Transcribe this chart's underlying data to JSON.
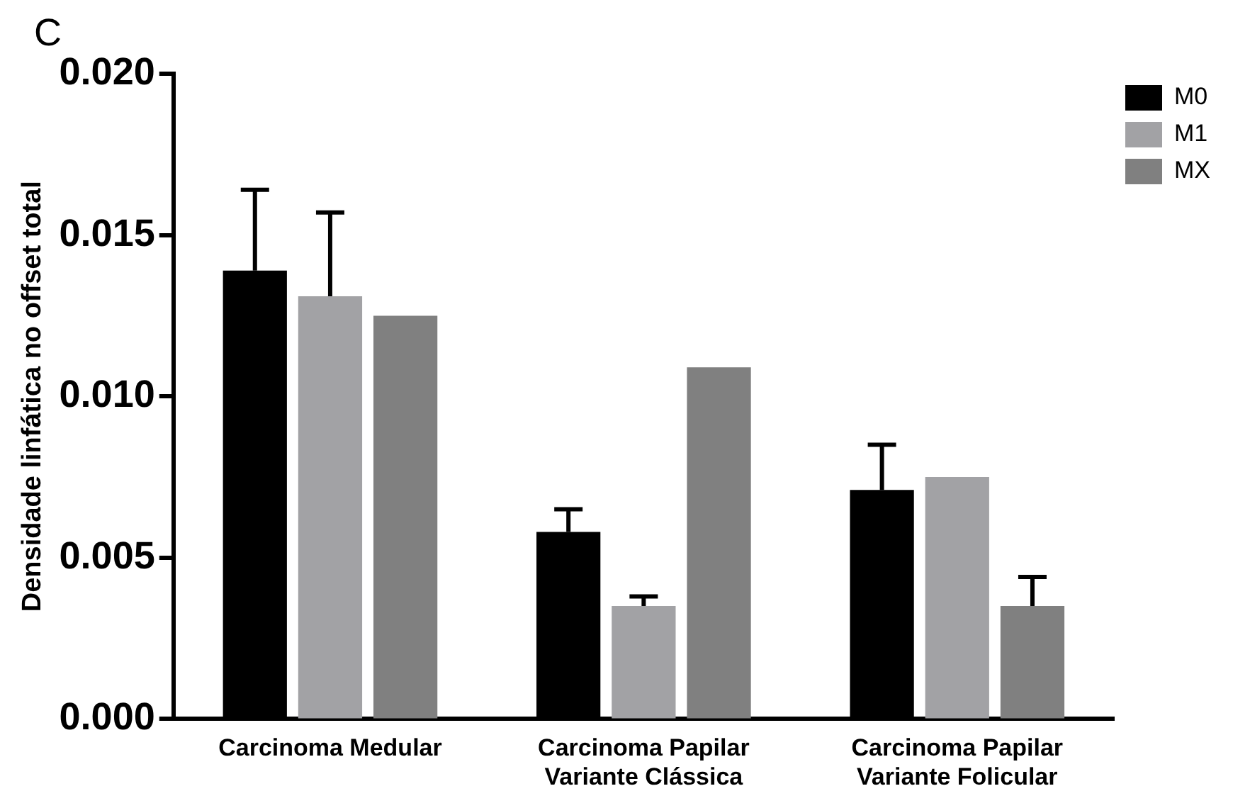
{
  "chart_data": {
    "type": "bar",
    "annotations": [
      "C"
    ],
    "ylabel": "Densidade linfática no offset total",
    "categories": [
      "Carcinoma Medular",
      "Carcinoma Papilar Variante Clássica",
      "Carcinoma Papilar Variante Folicular"
    ],
    "series": [
      {
        "name": "M0",
        "color": "#000000",
        "values": [
          0.0139,
          0.0058,
          0.0071
        ],
        "errors": [
          [
            0.0139,
            0.0164
          ],
          [
            0.0058,
            0.0065
          ],
          [
            0.0071,
            0.0085
          ]
        ]
      },
      {
        "name": "M1",
        "color": "#a2a2a5",
        "values": [
          0.0131,
          0.0035,
          0.0075
        ],
        "errors": [
          [
            0.0131,
            0.0157
          ],
          [
            0.0035,
            0.0038
          ],
          null
        ]
      },
      {
        "name": "MX",
        "color": "#808080",
        "values": [
          0.0125,
          0.0109,
          0.0035
        ],
        "errors": [
          null,
          null,
          [
            0.0035,
            0.0044
          ]
        ]
      }
    ],
    "ylim": [
      0,
      0.02
    ],
    "yticks": [
      {
        "value": 0,
        "label": "0.000"
      },
      0.005,
      {
        "value": 0.01,
        "label": "0.010"
      },
      0.015,
      {
        "value": 0.02,
        "label": "0.020"
      }
    ],
    "grid": false,
    "legend": "top right"
  }
}
